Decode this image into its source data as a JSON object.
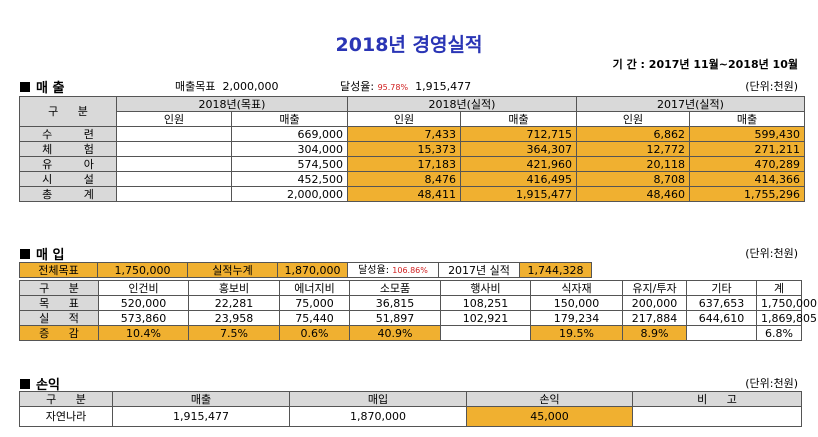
{
  "title": "2018년  경영실적",
  "period": "기 간 : 2017년 11월~2018년 10월",
  "sales": {
    "heading": "매  출",
    "target_label": "매출목표",
    "target_value": "2,000,000",
    "achieve_label": "달성율:",
    "achieve_pct": "95.78%",
    "achieve_value": "1,915,477",
    "unit": "(단위:천원)",
    "col_gubun": "구 분",
    "grp1": "2018년(목표)",
    "grp2": "2018년(실적)",
    "grp3": "2017년(실적)",
    "sub_people": "인원",
    "sub_sales": "매출",
    "rows": [
      {
        "label": "수 련",
        "t_people": "",
        "t_sales": "669,000",
        "a_people": "7,433",
        "a_sales": "712,715",
        "p_people": "6,862",
        "p_sales": "599,430"
      },
      {
        "label": "체 험",
        "t_people": "",
        "t_sales": "304,000",
        "a_people": "15,373",
        "a_sales": "364,307",
        "p_people": "12,772",
        "p_sales": "271,211"
      },
      {
        "label": "유 아",
        "t_people": "",
        "t_sales": "574,500",
        "a_people": "17,183",
        "a_sales": "421,960",
        "p_people": "20,118",
        "p_sales": "470,289"
      },
      {
        "label": "시 설",
        "t_people": "",
        "t_sales": "452,500",
        "a_people": "8,476",
        "a_sales": "416,495",
        "p_people": "8,708",
        "p_sales": "414,366"
      },
      {
        "label": "총 계",
        "t_people": "",
        "t_sales": "2,000,000",
        "a_people": "48,411",
        "a_sales": "1,915,477",
        "p_people": "48,460",
        "p_sales": "1,755,296"
      }
    ]
  },
  "purchase": {
    "heading": "매 입",
    "unit": "(단위:천원)",
    "total_target_label": "전체목표",
    "total_target_value": "1,750,000",
    "cumulative_label": "실적누계",
    "cumulative_value": "1,870,000",
    "achieve_label": "달성율:",
    "achieve_pct": "106.86%",
    "prev_label": "2017년  실적",
    "prev_value": "1,744,328",
    "headers": [
      "구 분",
      "인건비",
      "홍보비",
      "에너지비",
      "소모품",
      "행사비",
      "식자재",
      "유지/투자",
      "기타",
      "계"
    ],
    "rows": [
      {
        "label": "목 표",
        "values": [
          "520,000",
          "22,281",
          "75,000",
          "36,815",
          "108,251",
          "150,000",
          "200,000",
          "637,653",
          "1,750,000"
        ]
      },
      {
        "label": "실 적",
        "values": [
          "573,860",
          "23,958",
          "75,440",
          "51,897",
          "102,921",
          "179,234",
          "217,884",
          "644,610",
          "1,869,805"
        ]
      },
      {
        "label": "증 감",
        "values": [
          "10.4%",
          "7.5%",
          "0.6%",
          "40.9%",
          "",
          "19.5%",
          "8.9%",
          "",
          "6.8%"
        ]
      }
    ]
  },
  "profit": {
    "heading": "손익",
    "unit": "(단위:천원)",
    "headers": [
      "구 분",
      "매출",
      "매입",
      "손익",
      "비 고"
    ],
    "row": {
      "label": "자연나라",
      "sales": "1,915,477",
      "purchase": "1,870,000",
      "profit": "45,000",
      "note": ""
    }
  },
  "colors": {
    "title": "#2a35b5",
    "highlight": "#f0b030",
    "header": "#d9d9d9",
    "pct": "#d02020"
  }
}
